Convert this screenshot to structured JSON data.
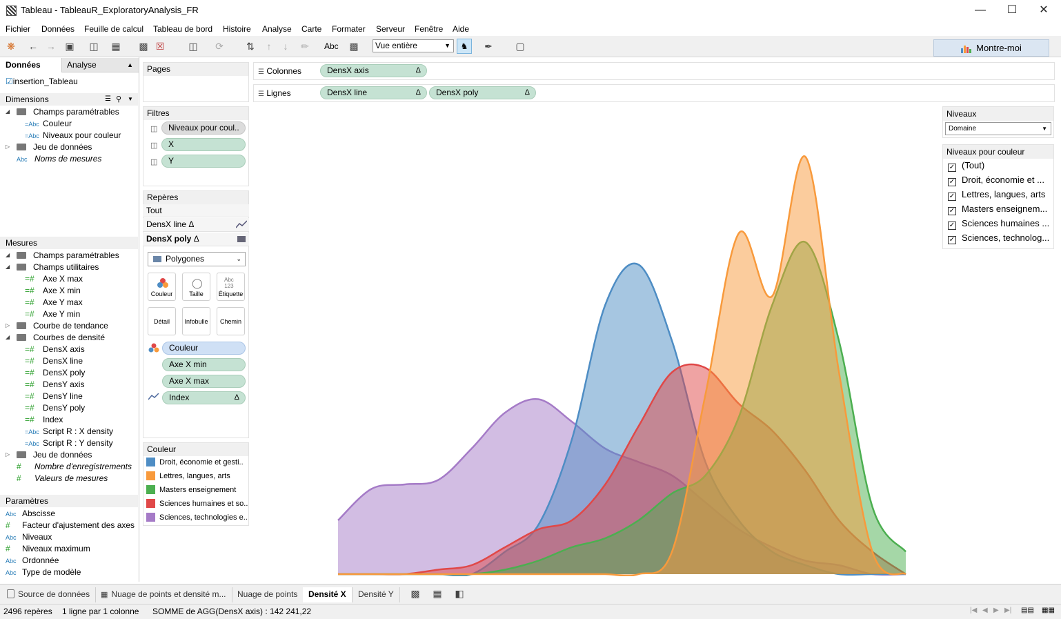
{
  "window": {
    "title": "Tableau - TableauR_ExploratoryAnalysis_FR"
  },
  "menu": [
    "Fichier",
    "Données",
    "Feuille de calcul",
    "Tableau de bord",
    "Histoire",
    "Analyse",
    "Carte",
    "Formater",
    "Serveur",
    "Fenêtre",
    "Aide"
  ],
  "toolbar": {
    "abc_label": "Abc",
    "fit_value": "Vue entière",
    "show_me": "Montre-moi"
  },
  "left_panel": {
    "tab_data": "Données",
    "tab_analysis": "Analyse",
    "datasource": "insertion_Tableau",
    "dimensions_header": "Dimensions",
    "dimensions": [
      {
        "label": "Champs paramétrables",
        "kind": "folder",
        "level": 0
      },
      {
        "label": "Couleur",
        "kind": "abc",
        "level": 1
      },
      {
        "label": "Niveaux pour couleur",
        "kind": "abc",
        "level": 1
      },
      {
        "label": "Jeu de données",
        "kind": "folder",
        "level": 0
      },
      {
        "label": "Noms de mesures",
        "kind": "abc-italic",
        "level": 0
      }
    ],
    "measures_header": "Mesures",
    "measures": [
      {
        "label": "Champs paramétrables",
        "kind": "folder",
        "level": 0
      },
      {
        "label": "Champs utilitaires",
        "kind": "folder",
        "level": 0
      },
      {
        "label": "Axe X max",
        "kind": "num",
        "level": 1
      },
      {
        "label": "Axe X min",
        "kind": "num",
        "level": 1
      },
      {
        "label": "Axe Y max",
        "kind": "num",
        "level": 1
      },
      {
        "label": "Axe Y min",
        "kind": "num",
        "level": 1
      },
      {
        "label": "Courbe de tendance",
        "kind": "folder",
        "level": 0
      },
      {
        "label": "Courbes de densité",
        "kind": "folder",
        "level": 0
      },
      {
        "label": "DensX axis",
        "kind": "num",
        "level": 1
      },
      {
        "label": "DensX line",
        "kind": "num",
        "level": 1
      },
      {
        "label": "DensX poly",
        "kind": "num",
        "level": 1
      },
      {
        "label": "DensY axis",
        "kind": "num",
        "level": 1
      },
      {
        "label": "DensY line",
        "kind": "num",
        "level": 1
      },
      {
        "label": "DensY poly",
        "kind": "num",
        "level": 1
      },
      {
        "label": "Index",
        "kind": "num",
        "level": 1
      },
      {
        "label": "Script R : X density",
        "kind": "abc",
        "level": 1
      },
      {
        "label": "Script R : Y density",
        "kind": "abc",
        "level": 1
      },
      {
        "label": "Jeu de données",
        "kind": "folder",
        "level": 0
      },
      {
        "label": "Nombre d'enregistrements",
        "kind": "num-italic",
        "level": 0
      },
      {
        "label": "Valeurs de mesures",
        "kind": "num-italic",
        "level": 0
      }
    ],
    "parameters_header": "Paramètres",
    "parameters": [
      {
        "label": "Abscisse",
        "kind": "abc"
      },
      {
        "label": "Facteur d'ajustement des axes",
        "kind": "num"
      },
      {
        "label": "Niveaux",
        "kind": "abc"
      },
      {
        "label": "Niveaux maximum",
        "kind": "num"
      },
      {
        "label": "Ordonnée",
        "kind": "abc"
      },
      {
        "label": "Type de modèle",
        "kind": "abc"
      }
    ]
  },
  "cards": {
    "pages": "Pages",
    "filters": "Filtres",
    "filter_pills": [
      "Niveaux pour coul..",
      "X",
      "Y"
    ],
    "marks": "Repères",
    "marks_all": "Tout",
    "marks_line": "DensX line",
    "marks_poly": "DensX poly",
    "mark_type": "Polygones",
    "mark_buttons": [
      "Couleur",
      "Taille",
      "Étiquette",
      "Détail",
      "Infobulle",
      "Chemin"
    ],
    "mark_pills": [
      "Couleur",
      "Axe X min",
      "Axe X max",
      "Index"
    ],
    "color_legend_title": "Couleur",
    "legend": [
      {
        "label": "Droit, économie et gesti..",
        "color": "#4e8dc4"
      },
      {
        "label": "Lettres, langues, arts",
        "color": "#f89a3c"
      },
      {
        "label": "Masters enseignement",
        "color": "#4caf50"
      },
      {
        "label": "Sciences humaines et so..",
        "color": "#e04848"
      },
      {
        "label": "Sciences, technologies e..",
        "color": "#a57bc7"
      }
    ]
  },
  "shelves": {
    "columns_label": "Colonnes",
    "rows_label": "Lignes",
    "columns": [
      "DensX axis"
    ],
    "rows": [
      "DensX line",
      "DensX poly"
    ]
  },
  "right_panel": {
    "levels_title": "Niveaux",
    "levels_value": "Domaine",
    "color_levels_title": "Niveaux pour couleur",
    "color_levels": [
      "(Tout)",
      "Droit, économie et ...",
      "Lettres, langues, arts",
      "Masters enseignem...",
      "Sciences humaines ...",
      "Sciences, technolog..."
    ]
  },
  "sheet_tabs": [
    "Source de données",
    "Nuage de points et densité m...",
    "Nuage de points",
    "Densité X",
    "Densité Y"
  ],
  "active_tab": "Densité X",
  "status": {
    "marks": "2496 repères",
    "rows_cols": "1 ligne par 1 colonne",
    "sum": "SOMME de AGG(DensX axis) : 142 241,22"
  },
  "chart_data": {
    "type": "area",
    "series": [
      {
        "name": "Sciences, technologies e..",
        "color": "#a57bc7",
        "y": [
          0.12,
          0.19,
          0.2,
          0.21,
          0.28,
          0.36,
          0.39,
          0.34,
          0.28,
          0.25,
          0.22,
          0.16,
          0.1,
          0.06,
          0.03,
          0.02,
          0.0,
          0.0
        ]
      },
      {
        "name": "Droit, économie et gesti..",
        "color": "#4e8dc4",
        "y": [
          0.0,
          0.0,
          0.0,
          0.0,
          0.0,
          0.05,
          0.11,
          0.3,
          0.6,
          0.69,
          0.52,
          0.25,
          0.12,
          0.05,
          0.02,
          0.0,
          0.0,
          0.0
        ]
      },
      {
        "name": "Sciences humaines et so..",
        "color": "#e04848",
        "y": [
          0.0,
          0.0,
          0.0,
          0.01,
          0.02,
          0.06,
          0.1,
          0.12,
          0.2,
          0.33,
          0.45,
          0.46,
          0.38,
          0.32,
          0.23,
          0.12,
          0.05,
          0.0
        ]
      },
      {
        "name": "Masters enseignement",
        "color": "#4caf50",
        "y": [
          0.0,
          0.0,
          0.0,
          0.0,
          0.0,
          0.01,
          0.03,
          0.06,
          0.08,
          0.12,
          0.18,
          0.22,
          0.35,
          0.6,
          0.74,
          0.52,
          0.15,
          0.05
        ]
      },
      {
        "name": "Lettres, langues, arts",
        "color": "#f89a3c",
        "y": [
          0.0,
          0.0,
          0.0,
          0.0,
          0.0,
          0.0,
          0.0,
          0.0,
          0.0,
          0.0,
          0.05,
          0.4,
          0.76,
          0.62,
          0.93,
          0.45,
          0.05,
          0.0
        ]
      }
    ],
    "ylim": [
      0,
      1
    ]
  }
}
